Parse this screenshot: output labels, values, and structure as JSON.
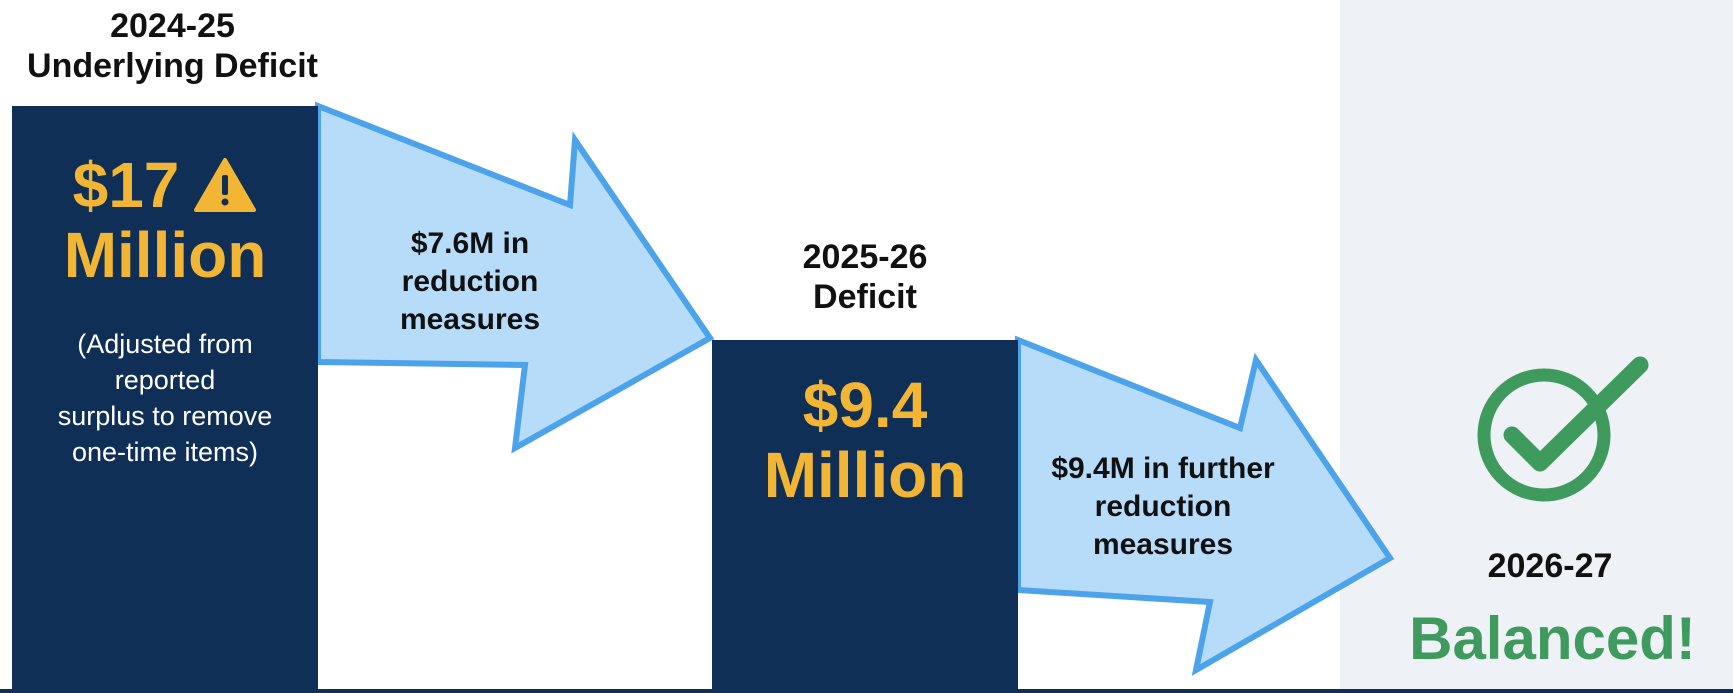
{
  "chart_data": {
    "type": "bar",
    "categories": [
      "2024-25",
      "2025-26",
      "2026-27"
    ],
    "values": [
      17,
      9.4,
      0
    ],
    "value_unit": "Million",
    "headings": [
      {
        "line1": "2024-25",
        "line2": "Underlying Deficit"
      },
      {
        "line1": "2025-26",
        "line2": "Deficit"
      },
      {
        "line1": "2026-27",
        "line2": ""
      }
    ],
    "amount_labels": [
      {
        "number": "$17",
        "unit": "Million"
      },
      {
        "number": "$9.4",
        "unit": "Million"
      }
    ],
    "note": [
      "(Adjusted from",
      "reported",
      "surplus to remove",
      "one-time items)"
    ],
    "step_labels": [
      [
        "$7.6M in",
        "reduction",
        "measures"
      ],
      [
        "$9.4M in further",
        "reduction",
        "measures"
      ]
    ],
    "final_label": "Balanced!",
    "icons": {
      "warning": "warning-icon",
      "check": "check-circle-icon"
    },
    "colors": {
      "bar": "#0f2f57",
      "amount": "#f2b634",
      "arrow_fill": "#b7dcfa",
      "arrow_stroke": "#4da3ea",
      "balanced": "#3f9a5e",
      "panel": "#eef1f5"
    }
  }
}
